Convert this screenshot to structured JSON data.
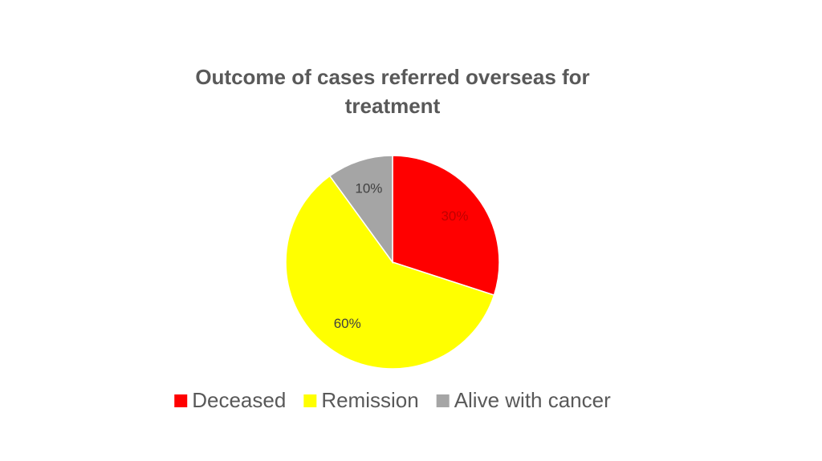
{
  "chart_data": {
    "type": "pie",
    "title": "Outcome of cases referred overseas for treatment",
    "categories": [
      "Deceased",
      "Remission",
      "Alive with cancer"
    ],
    "values": [
      30,
      60,
      10
    ],
    "value_labels": [
      "30%",
      "60%",
      "10%"
    ],
    "colors": [
      "#ff0000",
      "#ffff00",
      "#a5a5a5"
    ],
    "legend": "bottom"
  }
}
